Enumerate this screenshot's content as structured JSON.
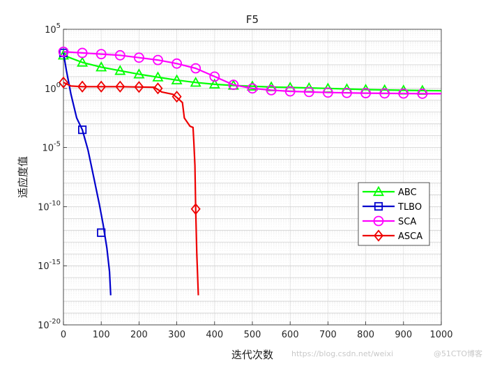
{
  "chart_data": {
    "type": "line",
    "title": "F5",
    "xlabel": "迭代次数",
    "ylabel": "适应度值",
    "xlim": [
      0,
      1000
    ],
    "ylim_log10": [
      -20,
      5
    ],
    "yscale": "log",
    "grid": true,
    "legend_position": "lower-right",
    "x_ticks": [
      0,
      100,
      200,
      300,
      400,
      500,
      600,
      700,
      800,
      900,
      1000
    ],
    "y_ticks": [
      {
        "base": "10",
        "exp": "5",
        "value": 5
      },
      {
        "base": "10",
        "exp": "0",
        "value": 0
      },
      {
        "base": "10",
        "exp": "-5",
        "value": -5
      },
      {
        "base": "10",
        "exp": "-10",
        "value": -10
      },
      {
        "base": "10",
        "exp": "-15",
        "value": -15
      },
      {
        "base": "10",
        "exp": "-20",
        "value": -20
      }
    ],
    "series": [
      {
        "name": "ABC",
        "color": "#00ff00",
        "marker": "triangle",
        "line": [
          [
            0,
            2.8
          ],
          [
            50,
            2.2
          ],
          [
            100,
            1.8
          ],
          [
            150,
            1.5
          ],
          [
            200,
            1.2
          ],
          [
            250,
            0.95
          ],
          [
            300,
            0.7
          ],
          [
            350,
            0.5
          ],
          [
            400,
            0.35
          ],
          [
            450,
            0.25
          ],
          [
            500,
            0.18
          ],
          [
            550,
            0.12
          ],
          [
            600,
            0.08
          ],
          [
            650,
            0.04
          ],
          [
            700,
            0.0
          ],
          [
            750,
            -0.05
          ],
          [
            800,
            -0.1
          ],
          [
            850,
            -0.13
          ],
          [
            900,
            -0.16
          ],
          [
            950,
            -0.18
          ],
          [
            1000,
            -0.2
          ]
        ],
        "marker_x": [
          0,
          50,
          100,
          150,
          200,
          250,
          300,
          350,
          400,
          450,
          500,
          550,
          600,
          650,
          700,
          750,
          800,
          850,
          900,
          950
        ]
      },
      {
        "name": "TLBO",
        "color": "#0000cc",
        "marker": "square",
        "line": [
          [
            0,
            3.0
          ],
          [
            8,
            1.5
          ],
          [
            20,
            -0.5
          ],
          [
            35,
            -2.5
          ],
          [
            50,
            -3.5
          ],
          [
            65,
            -5.2
          ],
          [
            80,
            -7.5
          ],
          [
            95,
            -9.8
          ],
          [
            105,
            -11.5
          ],
          [
            115,
            -13.5
          ],
          [
            122,
            -15.5
          ],
          [
            125,
            -17.5
          ]
        ],
        "marker_x": [
          0,
          50,
          100
        ],
        "marker_y": [
          3.0,
          -3.5,
          -12.2
        ]
      },
      {
        "name": "SCA",
        "color": "#ff00ff",
        "marker": "circle",
        "line": [
          [
            0,
            3.1
          ],
          [
            50,
            3.0
          ],
          [
            100,
            2.9
          ],
          [
            150,
            2.8
          ],
          [
            200,
            2.6
          ],
          [
            250,
            2.4
          ],
          [
            300,
            2.1
          ],
          [
            350,
            1.7
          ],
          [
            400,
            1.0
          ],
          [
            450,
            0.3
          ],
          [
            500,
            0.0
          ],
          [
            550,
            -0.15
          ],
          [
            600,
            -0.25
          ],
          [
            650,
            -0.3
          ],
          [
            700,
            -0.35
          ],
          [
            750,
            -0.38
          ],
          [
            800,
            -0.4
          ],
          [
            850,
            -0.42
          ],
          [
            900,
            -0.43
          ],
          [
            950,
            -0.45
          ],
          [
            1000,
            -0.45
          ]
        ],
        "marker_x": [
          0,
          50,
          100,
          150,
          200,
          250,
          300,
          350,
          400,
          450,
          500,
          550,
          600,
          650,
          700,
          750,
          800,
          850,
          900,
          950
        ]
      },
      {
        "name": "ASCA",
        "color": "#ee0000",
        "marker": "diamond",
        "line": [
          [
            0,
            0.5
          ],
          [
            20,
            0.2
          ],
          [
            50,
            0.15
          ],
          [
            100,
            0.15
          ],
          [
            150,
            0.15
          ],
          [
            200,
            0.12
          ],
          [
            240,
            0.1
          ],
          [
            250,
            -0.1
          ],
          [
            260,
            -0.3
          ],
          [
            290,
            -0.5
          ],
          [
            305,
            -0.9
          ],
          [
            315,
            -1.2
          ],
          [
            320,
            -2.5
          ],
          [
            335,
            -3.2
          ],
          [
            343,
            -3.3
          ],
          [
            345,
            -4.5
          ],
          [
            348,
            -6.5
          ],
          [
            350,
            -10.2
          ],
          [
            353,
            -14
          ],
          [
            357,
            -17.5
          ]
        ],
        "marker_x": [
          0,
          50,
          100,
          150,
          200,
          250,
          300,
          350
        ],
        "marker_y": [
          0.5,
          0.15,
          0.15,
          0.15,
          0.12,
          0.0,
          -0.7,
          -10.2
        ]
      }
    ]
  },
  "watermark": {
    "url_text": "https://blog.csdn.net/weixi",
    "brand_text": "@51CTO博客"
  }
}
